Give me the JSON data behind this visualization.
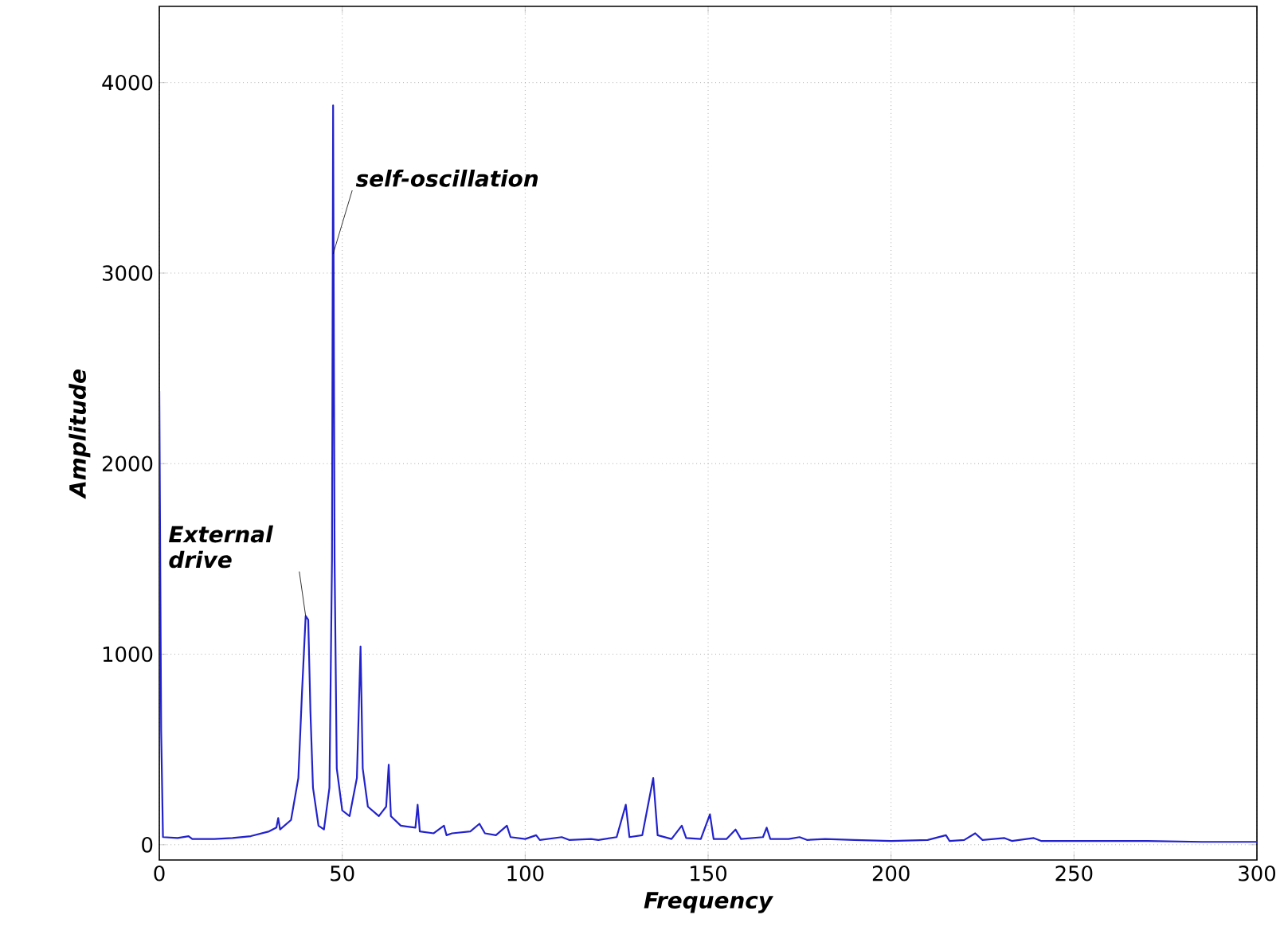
{
  "chart_data": {
    "type": "line",
    "xlabel": "Frequency",
    "ylabel": "Amplitude",
    "xlim": [
      0,
      300
    ],
    "ylim": [
      -80,
      4400
    ],
    "xticks": [
      0,
      50,
      100,
      150,
      200,
      250,
      300
    ],
    "yticks": [
      0,
      1000,
      2000,
      3000,
      4000
    ],
    "grid": true,
    "x": [
      0,
      0.5,
      1,
      5,
      8,
      9,
      15,
      20,
      25,
      30,
      32,
      32.5,
      33,
      36,
      38,
      39,
      40,
      40.7,
      41.3,
      42,
      43.5,
      45,
      46.5,
      47.2,
      47.5,
      47.9,
      48.5,
      50,
      52,
      54,
      55,
      55.6,
      57,
      60,
      62,
      62.7,
      63.3,
      66,
      70,
      70.6,
      71.2,
      75,
      77.8,
      78.5,
      80,
      85,
      87.5,
      89,
      92,
      95,
      96,
      100,
      103,
      104,
      110,
      112,
      118,
      120,
      125,
      127.5,
      128.5,
      132,
      135,
      136.2,
      140,
      142.8,
      144,
      148,
      150.5,
      151.5,
      155,
      157.5,
      159,
      165,
      166,
      167,
      172,
      175,
      177,
      182,
      190,
      200,
      210,
      215,
      216,
      220,
      223,
      225,
      231,
      233,
      239,
      241,
      255,
      270,
      285,
      300
    ],
    "series": [
      {
        "color": "#2222cc",
        "values": [
          2380,
          600,
          40,
          35,
          45,
          30,
          30,
          35,
          45,
          70,
          90,
          140,
          80,
          130,
          350,
          800,
          1200,
          1180,
          700,
          300,
          100,
          80,
          300,
          1500,
          3880,
          1500,
          400,
          180,
          150,
          350,
          1040,
          400,
          200,
          150,
          200,
          420,
          150,
          100,
          90,
          210,
          70,
          60,
          100,
          50,
          60,
          70,
          110,
          60,
          50,
          100,
          40,
          30,
          50,
          25,
          40,
          25,
          30,
          25,
          40,
          210,
          40,
          50,
          350,
          50,
          30,
          100,
          35,
          30,
          160,
          30,
          30,
          80,
          30,
          40,
          90,
          30,
          30,
          40,
          25,
          30,
          25,
          20,
          25,
          50,
          20,
          25,
          60,
          25,
          35,
          20,
          35,
          20,
          20,
          20,
          15,
          15
        ]
      }
    ],
    "annotations": [
      {
        "text": "self-oscillation",
        "x": 47.5,
        "y": 3100
      },
      {
        "text": "External drive",
        "x": 40,
        "y": 1200
      }
    ]
  }
}
